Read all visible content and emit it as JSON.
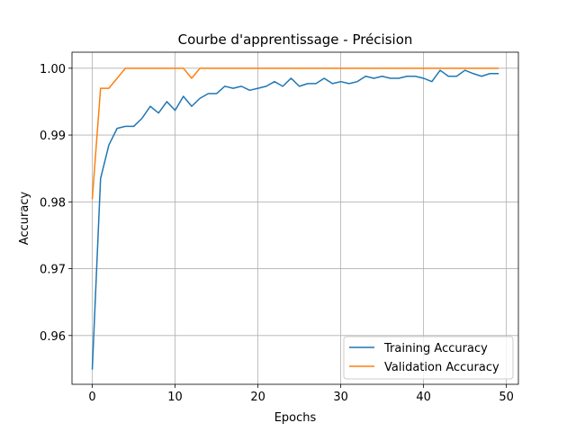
{
  "chart_data": {
    "type": "line",
    "title": "Courbe d'apprentissage - Précision",
    "xlabel": "Epochs",
    "ylabel": "Accuracy",
    "xlim": [
      -2.45,
      51.45
    ],
    "ylim": [
      0.9527,
      1.0024
    ],
    "xticks": [
      0,
      10,
      20,
      30,
      40,
      50
    ],
    "yticks": [
      0.96,
      0.97,
      0.98,
      0.99,
      1.0
    ],
    "ytick_labels": [
      "0.96",
      "0.97",
      "0.98",
      "0.99",
      "1.00"
    ],
    "grid": true,
    "legend_position": "bottom-right",
    "x": [
      0,
      1,
      2,
      3,
      4,
      5,
      6,
      7,
      8,
      9,
      10,
      11,
      12,
      13,
      14,
      15,
      16,
      17,
      18,
      19,
      20,
      21,
      22,
      23,
      24,
      25,
      26,
      27,
      28,
      29,
      30,
      31,
      32,
      33,
      34,
      35,
      36,
      37,
      38,
      39,
      40,
      41,
      42,
      43,
      44,
      45,
      46,
      47,
      48,
      49
    ],
    "series": [
      {
        "name": "Training Accuracy",
        "color": "#1f77b4",
        "values": [
          0.955,
          0.9835,
          0.9885,
          0.991,
          0.9913,
          0.9913,
          0.9925,
          0.9943,
          0.9933,
          0.995,
          0.9937,
          0.9958,
          0.9943,
          0.9955,
          0.9962,
          0.9962,
          0.9973,
          0.997,
          0.9973,
          0.9967,
          0.997,
          0.9973,
          0.998,
          0.9973,
          0.9985,
          0.9973,
          0.9977,
          0.9977,
          0.9985,
          0.9977,
          0.998,
          0.9977,
          0.998,
          0.9988,
          0.9985,
          0.9988,
          0.9985,
          0.9985,
          0.9988,
          0.9988,
          0.9985,
          0.998,
          0.9997,
          0.9988,
          0.9988,
          0.9997,
          0.9992,
          0.9988,
          0.9992,
          0.9992
        ]
      },
      {
        "name": "Validation Accuracy",
        "color": "#ff7f0e",
        "values": [
          0.9805,
          0.997,
          0.997,
          0.9985,
          1.0,
          1.0,
          1.0,
          1.0,
          1.0,
          1.0,
          1.0,
          1.0,
          0.9985,
          1.0,
          1.0,
          1.0,
          1.0,
          1.0,
          1.0,
          1.0,
          1.0,
          1.0,
          1.0,
          1.0,
          1.0,
          1.0,
          1.0,
          1.0,
          1.0,
          1.0,
          1.0,
          1.0,
          1.0,
          1.0,
          1.0,
          1.0,
          1.0,
          1.0,
          1.0,
          1.0,
          1.0,
          1.0,
          1.0,
          1.0,
          1.0,
          1.0,
          1.0,
          1.0,
          1.0,
          1.0
        ]
      }
    ]
  }
}
